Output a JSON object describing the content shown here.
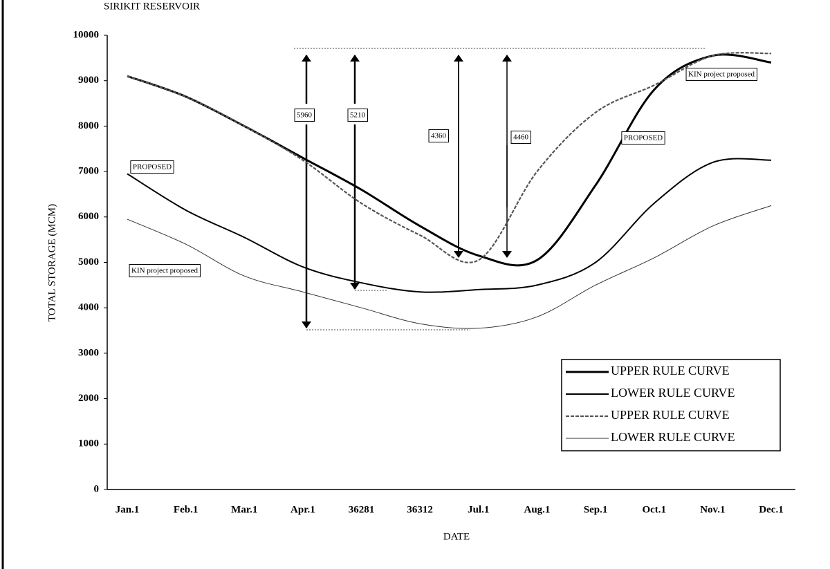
{
  "chart_data": {
    "type": "line",
    "title": "SIRIKIT RESERVOIR",
    "x_label": "DATE",
    "y_label": "TOTAL STORAGE (MCM)",
    "categories": [
      "Jan.1",
      "Feb.1",
      "Mar.1",
      "Apr.1",
      "36281",
      "36312",
      "Jul.1",
      "Aug.1",
      "Sep.1",
      "Oct.1",
      "Nov.1",
      "Dec.1"
    ],
    "series": [
      {
        "name": "UPPER RULE CURVE",
        "color": "#000000",
        "values": [
          9100,
          8650,
          8000,
          7300,
          6600,
          5800,
          5150,
          5050,
          6700,
          8800,
          9550,
          9400
        ]
      },
      {
        "name": "LOWER RULE CURVE",
        "color": "#000000",
        "values": [
          6950,
          6150,
          5550,
          4900,
          4550,
          4350,
          4400,
          4500,
          5000,
          6300,
          7200,
          7250
        ]
      },
      {
        "name": "UPPER RULE CURVE",
        "color": "#555555",
        "values": [
          9100,
          8650,
          8000,
          7250,
          6300,
          5600,
          5050,
          7000,
          8300,
          8900,
          9550,
          9600
        ]
      },
      {
        "name": "LOWER RULE CURVE",
        "color": "#333333",
        "values": [
          5950,
          5400,
          4700,
          4350,
          4000,
          3650,
          3550,
          3800,
          4500,
          5100,
          5800,
          6250
        ]
      }
    ],
    "ylim": [
      0,
      10000
    ],
    "yticks": [
      0,
      1000,
      2000,
      3000,
      4000,
      5000,
      6000,
      7000,
      8000,
      9000,
      10000
    ],
    "annotations": [
      "5960",
      "5210",
      "4360",
      "4460",
      "PROPOSED",
      "PROPOSED",
      "KIN project proposed",
      "KIN project proposed"
    ],
    "legend": "lower right"
  }
}
